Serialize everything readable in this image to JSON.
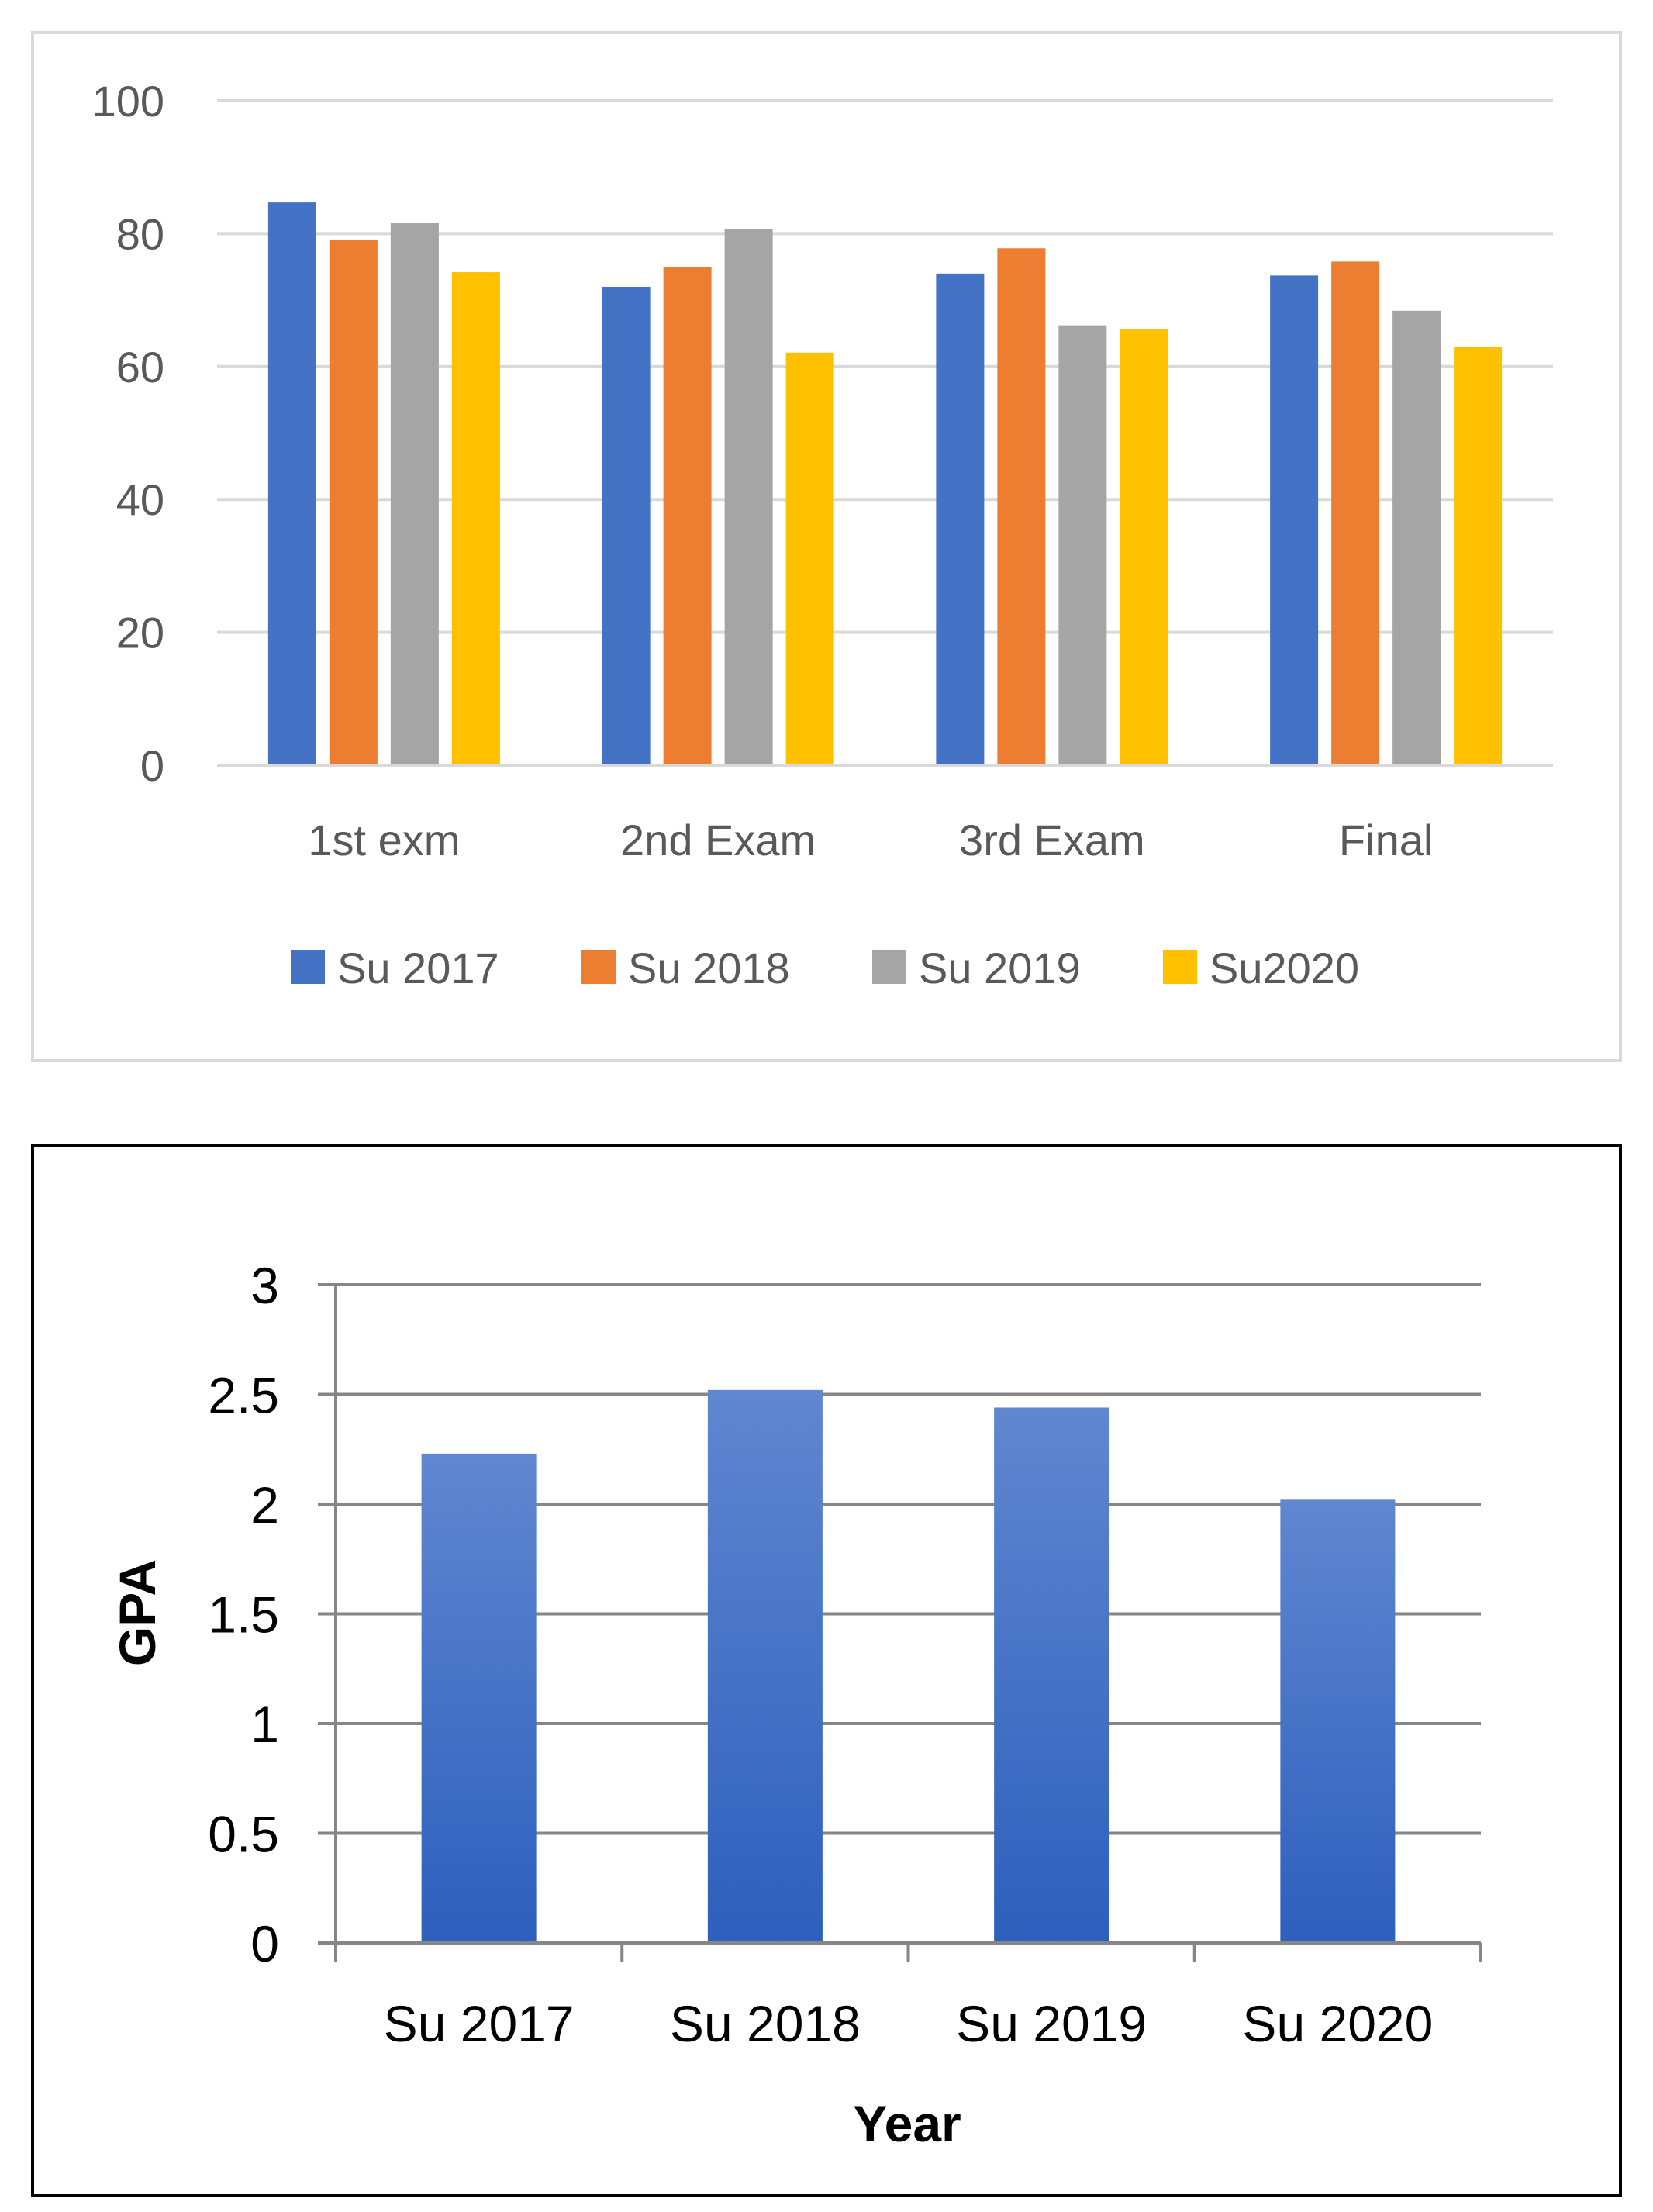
{
  "chart_data": [
    {
      "type": "bar",
      "title": "",
      "xlabel": "",
      "ylabel": "",
      "ylim": [
        0,
        100
      ],
      "yticks": [
        "0",
        "20",
        "40",
        "60",
        "80",
        "100"
      ],
      "grid": true,
      "legend_position": "bottom",
      "categories": [
        "1st exm",
        "2nd Exam",
        "3rd Exam",
        "Final"
      ],
      "series": [
        {
          "name": "Su 2017",
          "color": "#4472C4",
          "values": [
            84.7,
            72.0,
            74.0,
            73.7
          ]
        },
        {
          "name": "Su 2018",
          "color": "#ED7D31",
          "values": [
            79.0,
            75.0,
            77.8,
            75.8
          ]
        },
        {
          "name": "Su 2019",
          "color": "#A5A5A5",
          "values": [
            81.6,
            80.7,
            66.2,
            68.4
          ]
        },
        {
          "name": "Su2020",
          "color": "#FFC000",
          "values": [
            74.2,
            62.1,
            65.7,
            62.9
          ]
        }
      ]
    },
    {
      "type": "bar",
      "title": "",
      "xlabel": "Year",
      "ylabel": "GPA",
      "ylim": [
        0,
        3
      ],
      "yticks": [
        "0",
        "0.5",
        "1",
        "1.5",
        "2",
        "2.5",
        "3"
      ],
      "grid": true,
      "color": "#4472C4",
      "categories": [
        "Su 2017",
        "Su 2018",
        "Su 2019",
        "Su 2020"
      ],
      "values": [
        2.23,
        2.52,
        2.44,
        2.02
      ]
    }
  ]
}
